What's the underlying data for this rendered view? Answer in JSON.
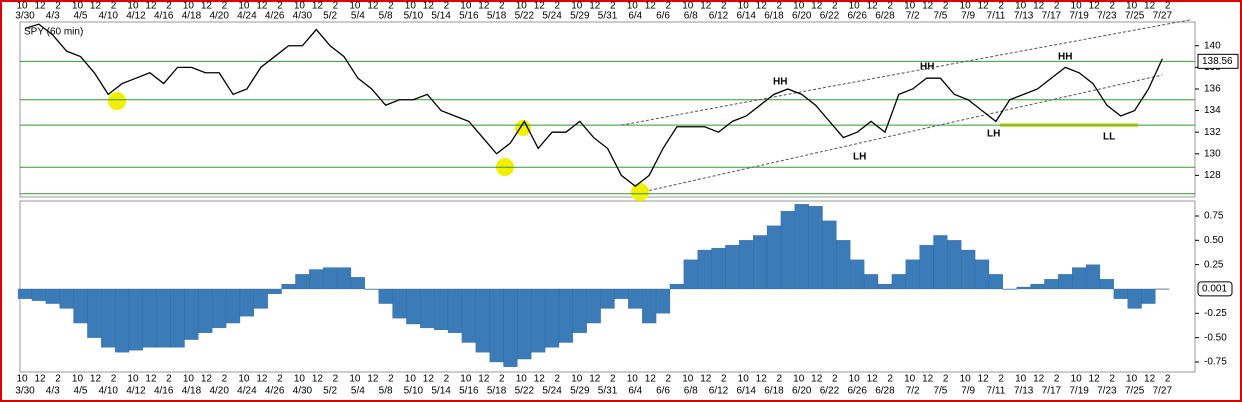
{
  "x_axis": {
    "hours": [
      "10",
      "12",
      "2"
    ],
    "dates": [
      "3/30",
      "4/3",
      "4/5",
      "4/10",
      "4/12",
      "4/16",
      "4/18",
      "4/20",
      "4/24",
      "4/26",
      "4/30",
      "5/2",
      "5/4",
      "5/8",
      "5/10",
      "5/14",
      "5/16",
      "5/18",
      "5/22",
      "5/24",
      "5/29",
      "5/31",
      "6/4",
      "6/6",
      "6/8",
      "6/12",
      "6/14",
      "6/18",
      "6/20",
      "6/22",
      "6/26",
      "6/28",
      "7/2",
      "7/5",
      "7/9",
      "7/11",
      "7/13",
      "7/17",
      "7/19",
      "7/23",
      "7/25",
      "7/27"
    ]
  },
  "chart_data": [
    {
      "type": "line",
      "title": "SPY (60 min)",
      "color": "#000000",
      "values": [
        141.6,
        142,
        141,
        139.5,
        139,
        137.5,
        135.5,
        136.5,
        137,
        137.5,
        136.5,
        138,
        138,
        137.5,
        137.5,
        135.5,
        136,
        138,
        139,
        140,
        140,
        141.5,
        140,
        139,
        137,
        136,
        134.5,
        135,
        135,
        135.5,
        134,
        133.5,
        133,
        131.5,
        130,
        131,
        133,
        130.5,
        132,
        132,
        133,
        131.5,
        130.5,
        128,
        127,
        128,
        130.5,
        132.5,
        132.5,
        132.5,
        132,
        133,
        133.5,
        134.5,
        135.5,
        136,
        135.5,
        134.5,
        133,
        131.5,
        132,
        133,
        132,
        135.5,
        136,
        137,
        137,
        135.5,
        135,
        134,
        133,
        135,
        135.5,
        136,
        137,
        138,
        137.5,
        136.5,
        134.5,
        133.5,
        134,
        136,
        138.8
      ],
      "ylim": [
        126,
        142.2
      ],
      "yticks": [
        128,
        130,
        132,
        134,
        136,
        138,
        140
      ],
      "levels": [
        138.56,
        135,
        132.65,
        128.75,
        126.3
      ],
      "level_color": "#339933",
      "trend_lines": [
        {
          "start": [
            43,
            132.65
          ],
          "end": [
            84,
            142.4
          ]
        },
        {
          "start": [
            45,
            126.6
          ],
          "end": [
            82,
            137.3
          ]
        }
      ],
      "annotations": [
        {
          "text": "HH",
          "color": "#228b22"
        },
        {
          "text": "HH",
          "color": "#228b22"
        },
        {
          "text": "HH",
          "color": "#228b22"
        },
        {
          "text": "LH",
          "color": "#000000"
        },
        {
          "text": "LH",
          "color": "#000000"
        },
        {
          "text": "LL",
          "color": "#dd0000"
        }
      ]
    },
    {
      "type": "bar",
      "color": "#3a7bb8",
      "values": [
        -0.1,
        -0.12,
        -0.15,
        -0.2,
        -0.35,
        -0.5,
        -0.6,
        -0.65,
        -0.63,
        -0.6,
        -0.6,
        -0.6,
        -0.52,
        -0.45,
        -0.4,
        -0.35,
        -0.28,
        -0.2,
        -0.05,
        0.05,
        0.15,
        0.2,
        0.22,
        0.22,
        0.12,
        0.0,
        -0.15,
        -0.3,
        -0.36,
        -0.4,
        -0.42,
        -0.45,
        -0.55,
        -0.65,
        -0.75,
        -0.8,
        -0.72,
        -0.65,
        -0.6,
        -0.55,
        -0.45,
        -0.35,
        -0.2,
        -0.1,
        -0.2,
        -0.35,
        -0.25,
        0.05,
        0.3,
        0.4,
        0.42,
        0.45,
        0.5,
        0.55,
        0.65,
        0.8,
        0.87,
        0.85,
        0.7,
        0.5,
        0.3,
        0.15,
        0.05,
        0.15,
        0.3,
        0.45,
        0.55,
        0.5,
        0.4,
        0.3,
        0.15,
        0.0,
        0.02,
        0.05,
        0.1,
        0.15,
        0.22,
        0.25,
        0.1,
        -0.1,
        -0.2,
        -0.15,
        0.001
      ],
      "ylim": [
        -0.853,
        0.904
      ],
      "yticks": [
        0.75,
        {
          "value": 0.5,
          "label": "0.50"
        },
        0.25,
        -0.25,
        {
          "value": -0.5,
          "label": "-0.50"
        },
        -0.75
      ],
      "last_value": 0.001
    }
  ]
}
